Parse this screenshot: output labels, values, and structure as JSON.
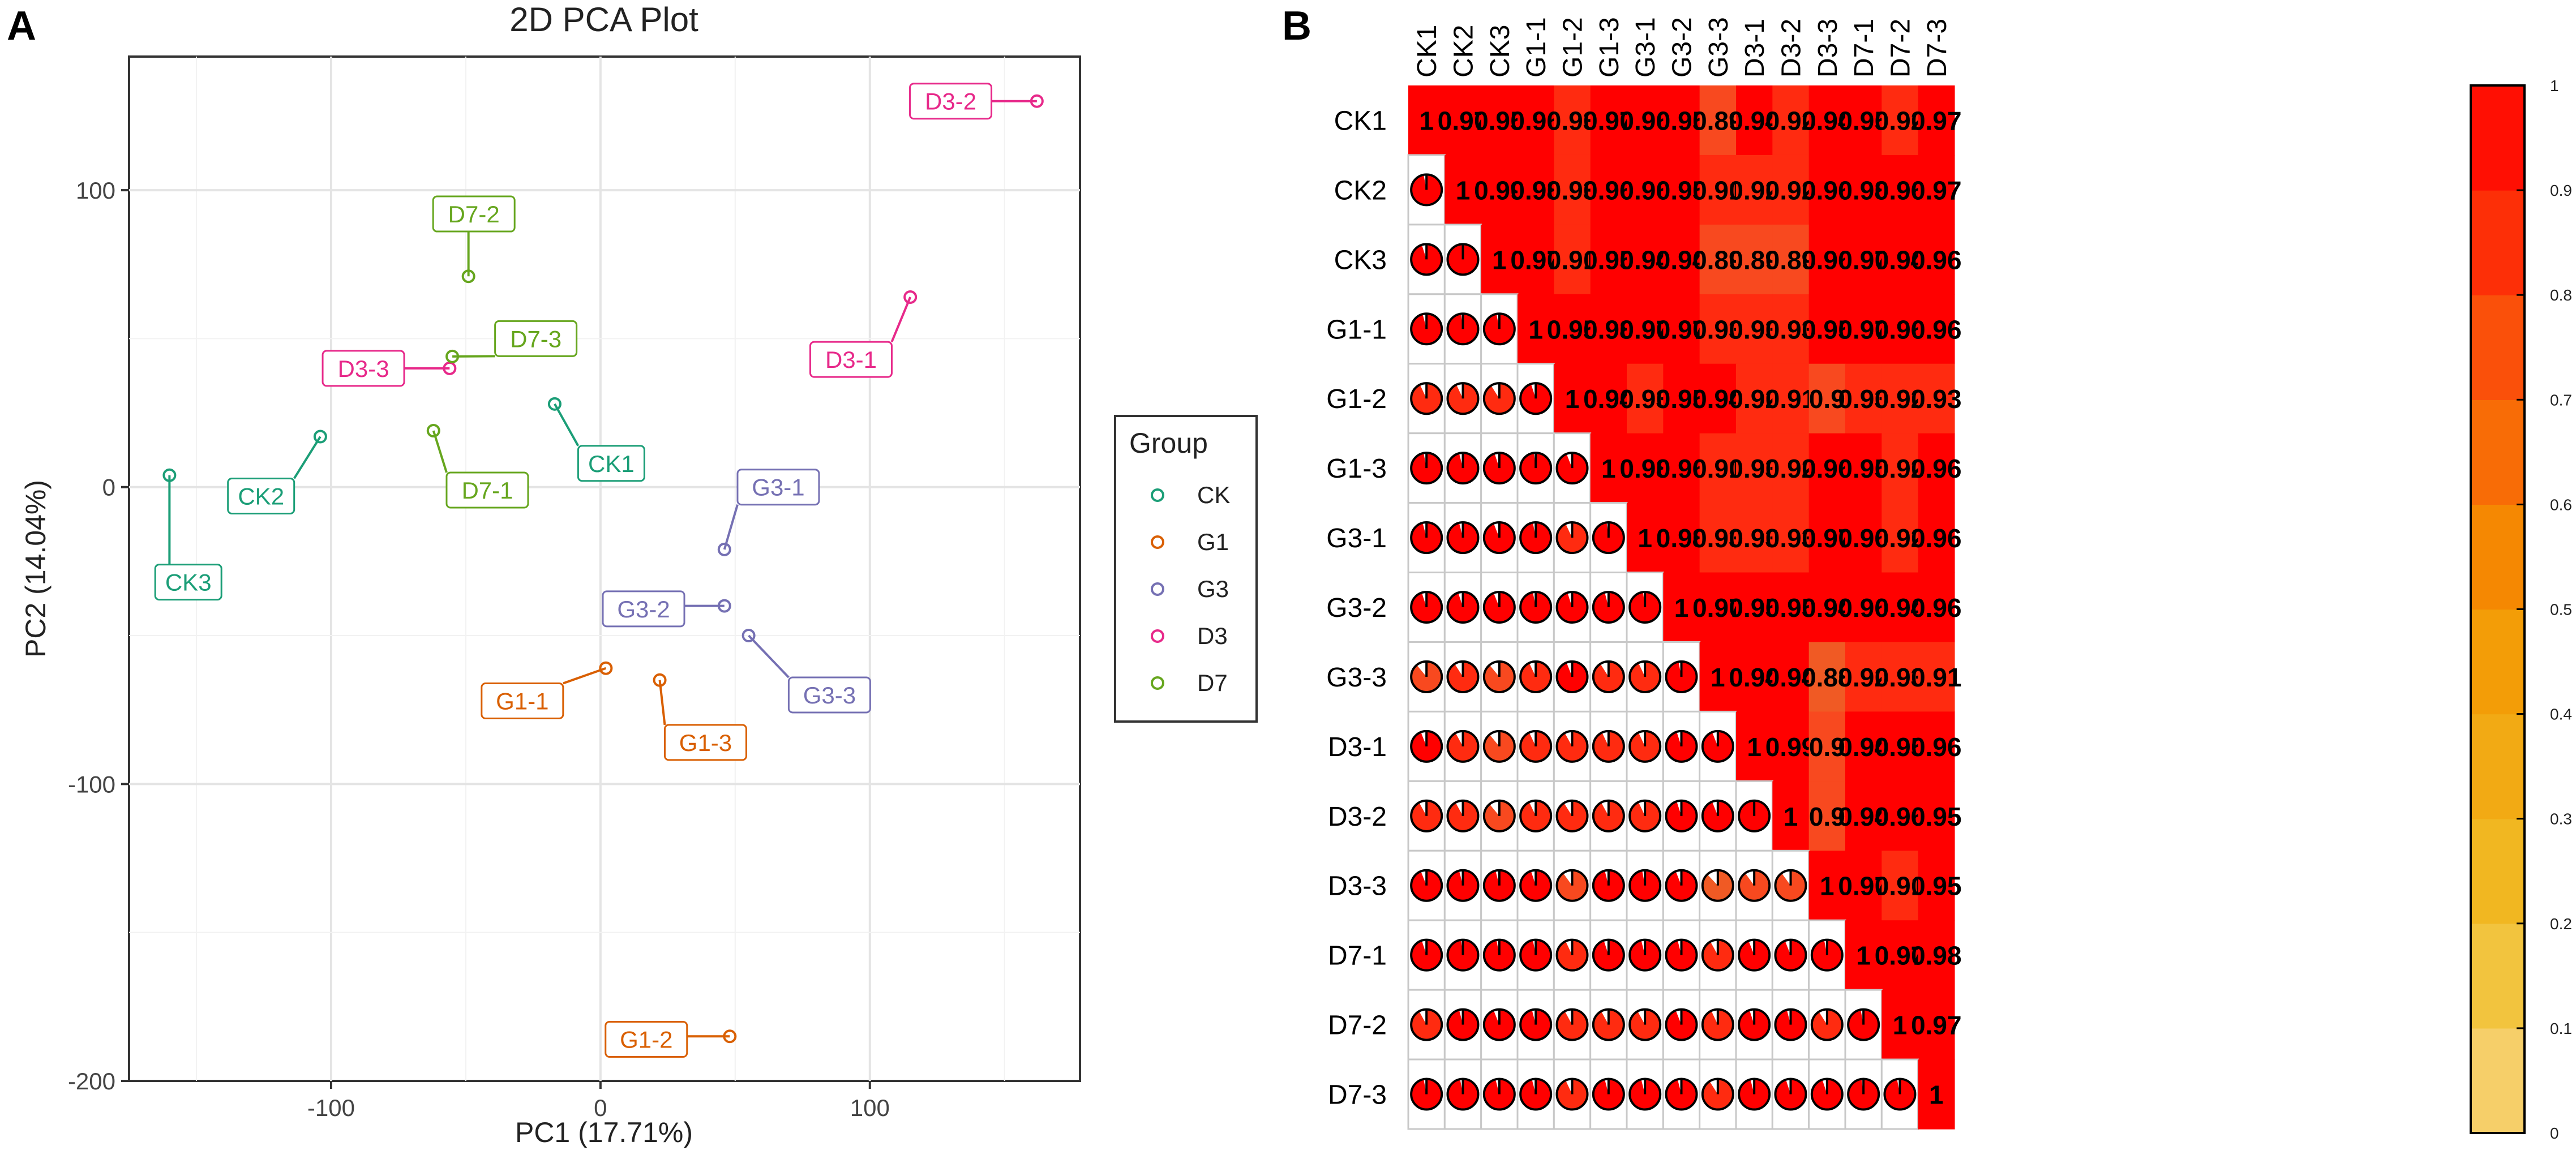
{
  "figure": {
    "panel_a_letter": "A",
    "panel_b_letter": "B"
  },
  "colors": {
    "CK": "#1b9e77",
    "G1": "#d95f02",
    "G3": "#7570b3",
    "D3": "#e7298a",
    "D7": "#66a61e",
    "heat_low": "#f8d57e",
    "heat_high": "#ff0000"
  },
  "chart_data": [
    {
      "type": "scatter",
      "title": "2D PCA Plot",
      "xlabel": "PC1 (17.71%)",
      "ylabel": "PC2 (14.04%)",
      "xlim": [
        -175,
        178
      ],
      "ylim": [
        -200,
        145
      ],
      "xticks": [
        -100,
        0,
        100
      ],
      "yticks": [
        100,
        0,
        -100,
        -200
      ],
      "grid": true,
      "legend": {
        "title": "Group",
        "placement": "right",
        "groups": [
          "CK",
          "G1",
          "G3",
          "D3",
          "D7"
        ]
      },
      "points": [
        {
          "label": "CK1",
          "group": "CK",
          "x": -17,
          "y": 28,
          "lx": 4,
          "ly": 8
        },
        {
          "label": "CK2",
          "group": "CK",
          "x": -104,
          "y": 17,
          "lx": -126,
          "ly": -3
        },
        {
          "label": "CK3",
          "group": "CK",
          "x": -160,
          "y": 4,
          "lx": -153,
          "ly": -32
        },
        {
          "label": "G1-1",
          "group": "G1",
          "x": 2,
          "y": -61,
          "lx": -29,
          "ly": -72
        },
        {
          "label": "G1-2",
          "group": "G1",
          "x": 48,
          "y": -185,
          "lx": 17,
          "ly": -186
        },
        {
          "label": "G1-3",
          "group": "G1",
          "x": 22,
          "y": -65,
          "lx": 39,
          "ly": -86
        },
        {
          "label": "G3-1",
          "group": "G3",
          "x": 46,
          "y": -21,
          "lx": 66,
          "ly": 0
        },
        {
          "label": "G3-2",
          "group": "G3",
          "x": 46,
          "y": -40,
          "lx": 16,
          "ly": -41
        },
        {
          "label": "G3-3",
          "group": "G3",
          "x": 55,
          "y": -50,
          "lx": 85,
          "ly": -70
        },
        {
          "label": "D3-1",
          "group": "D3",
          "x": 115,
          "y": 64,
          "lx": 93,
          "ly": 43
        },
        {
          "label": "D3-2",
          "group": "D3",
          "x": 162,
          "y": 130,
          "lx": 130,
          "ly": 130
        },
        {
          "label": "D3-3",
          "group": "D3",
          "x": -56,
          "y": 40,
          "lx": -88,
          "ly": 40
        },
        {
          "label": "D7-1",
          "group": "D7",
          "x": -62,
          "y": 19,
          "lx": -42,
          "ly": -1
        },
        {
          "label": "D7-2",
          "group": "D7",
          "x": -49,
          "y": 71,
          "lx": -47,
          "ly": 92
        },
        {
          "label": "D7-3",
          "group": "D7",
          "x": -55,
          "y": 44,
          "lx": -24,
          "ly": 50
        }
      ]
    },
    {
      "type": "heatmap",
      "samples": [
        "CK1",
        "CK2",
        "CK3",
        "G1-1",
        "G1-2",
        "G1-3",
        "G3-1",
        "G3-2",
        "G3-3",
        "D3-1",
        "D3-2",
        "D3-3",
        "D7-1",
        "D7-2",
        "D7-3"
      ],
      "matrix": [
        [
          1,
          0.97,
          0.95,
          0.96,
          0.93,
          0.97,
          0.96,
          0.95,
          0.89,
          0.94,
          0.92,
          0.94,
          0.95,
          0.92,
          0.97
        ],
        [
          0.97,
          1,
          0.99,
          0.98,
          0.93,
          0.96,
          0.96,
          0.95,
          0.91,
          0.92,
          0.92,
          0.96,
          0.98,
          0.96,
          0.97
        ],
        [
          0.95,
          0.99,
          1,
          0.97,
          0.91,
          0.95,
          0.94,
          0.94,
          0.89,
          0.89,
          0.89,
          0.96,
          0.97,
          0.94,
          0.96
        ],
        [
          0.96,
          0.98,
          0.97,
          1,
          0.95,
          0.98,
          0.97,
          0.97,
          0.93,
          0.93,
          0.93,
          0.95,
          0.97,
          0.96,
          0.96
        ],
        [
          0.93,
          0.93,
          0.91,
          0.95,
          1,
          0.94,
          0.93,
          0.95,
          0.94,
          0.92,
          0.91,
          0.9,
          0.93,
          0.92,
          0.93
        ],
        [
          0.97,
          0.96,
          0.95,
          0.98,
          0.94,
          1,
          0.98,
          0.96,
          0.91,
          0.93,
          0.92,
          0.96,
          0.95,
          0.92,
          0.96
        ],
        [
          0.96,
          0.96,
          0.94,
          0.97,
          0.93,
          0.98,
          1,
          0.98,
          0.93,
          0.93,
          0.93,
          0.97,
          0.96,
          0.92,
          0.96
        ],
        [
          0.95,
          0.95,
          0.94,
          0.97,
          0.95,
          0.96,
          0.98,
          1,
          0.97,
          0.95,
          0.95,
          0.94,
          0.96,
          0.94,
          0.96
        ],
        [
          0.89,
          0.91,
          0.89,
          0.93,
          0.94,
          0.91,
          0.93,
          0.97,
          1,
          0.94,
          0.94,
          0.88,
          0.92,
          0.93,
          0.91
        ],
        [
          0.94,
          0.92,
          0.89,
          0.93,
          0.92,
          0.93,
          0.93,
          0.95,
          0.94,
          1,
          0.99,
          0.9,
          0.94,
          0.95,
          0.96
        ],
        [
          0.92,
          0.92,
          0.89,
          0.93,
          0.91,
          0.92,
          0.93,
          0.95,
          0.94,
          0.99,
          1,
          0.9,
          0.94,
          0.96,
          0.95
        ],
        [
          0.94,
          0.96,
          0.96,
          0.95,
          0.9,
          0.96,
          0.97,
          0.94,
          0.88,
          0.9,
          0.9,
          1,
          0.97,
          0.91,
          0.95
        ],
        [
          0.95,
          0.98,
          0.97,
          0.97,
          0.93,
          0.95,
          0.96,
          0.96,
          0.92,
          0.94,
          0.94,
          0.97,
          1,
          0.97,
          0.98
        ],
        [
          0.92,
          0.96,
          0.94,
          0.96,
          0.92,
          0.92,
          0.92,
          0.94,
          0.93,
          0.95,
          0.96,
          0.91,
          0.97,
          1,
          0.97
        ],
        [
          0.97,
          0.97,
          0.96,
          0.96,
          0.93,
          0.96,
          0.96,
          0.96,
          0.91,
          0.96,
          0.95,
          0.95,
          0.98,
          0.97,
          1
        ]
      ],
      "colorbar": {
        "min": 0,
        "max": 1,
        "ticks": [
          "0",
          "0.1",
          "0.2",
          "0.3",
          "0.4",
          "0.5",
          "0.6",
          "0.7",
          "0.8",
          "0.9",
          "1"
        ]
      },
      "upper": "numbers",
      "lower": "pies"
    }
  ]
}
